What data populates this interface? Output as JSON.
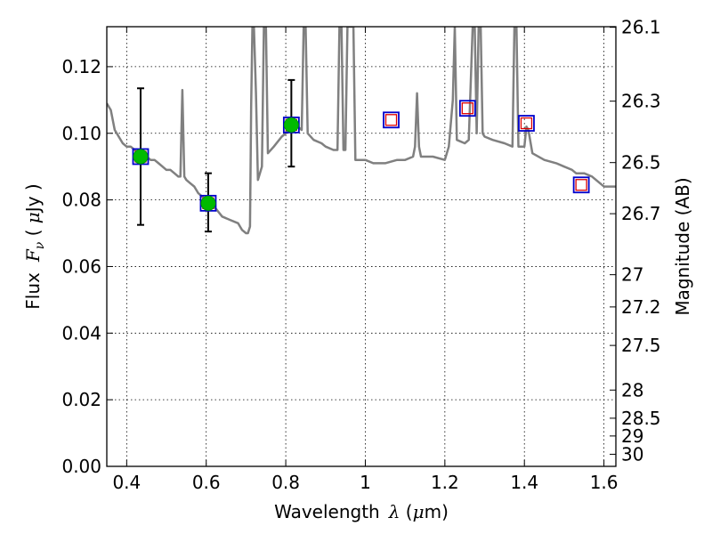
{
  "chart_data": {
    "type": "scatter",
    "title": "",
    "xlabel": "Wavelength",
    "xlabel_symbol": "λ",
    "xlabel_unit_open": " (",
    "xlabel_unit_mu": "μ",
    "xlabel_unit_rest": "m)",
    "ylabel": "Flux",
    "ylabel_symbol": "F",
    "ylabel_symbol_sub": "ν",
    "ylabel_unit_open": " ( ",
    "ylabel_unit_mu": "μ",
    "ylabel_unit_rest": "Jy )",
    "y2label": "Magnitude (AB)",
    "xlim": [
      0.35,
      1.63
    ],
    "ylim": [
      0.0,
      0.132
    ],
    "grid": true,
    "x_ticks": [
      {
        "value": 0.4,
        "label": "0.4"
      },
      {
        "value": 0.6,
        "label": "0.6"
      },
      {
        "value": 0.8,
        "label": "0.8"
      },
      {
        "value": 1.0,
        "label": "1"
      },
      {
        "value": 1.2,
        "label": "1.2"
      },
      {
        "value": 1.4,
        "label": "1.4"
      },
      {
        "value": 1.6,
        "label": "1.6"
      }
    ],
    "y_ticks": [
      {
        "value": 0.0,
        "label": "0.00"
      },
      {
        "value": 0.02,
        "label": "0.02"
      },
      {
        "value": 0.04,
        "label": "0.04"
      },
      {
        "value": 0.06,
        "label": "0.06"
      },
      {
        "value": 0.08,
        "label": "0.08"
      },
      {
        "value": 0.1,
        "label": "0.10"
      },
      {
        "value": 0.12,
        "label": "0.12"
      }
    ],
    "mag_ticks": [
      {
        "value": 26.1,
        "label": "26.1"
      },
      {
        "value": 26.3,
        "label": "26.3"
      },
      {
        "value": 26.5,
        "label": "26.5"
      },
      {
        "value": 26.7,
        "label": "26.7"
      },
      {
        "value": 27.0,
        "label": "27"
      },
      {
        "value": 27.2,
        "label": "27.2"
      },
      {
        "value": 27.5,
        "label": "27.5"
      },
      {
        "value": 28.0,
        "label": "28"
      },
      {
        "value": 28.5,
        "label": "28.5"
      },
      {
        "value": 29.0,
        "label": "29"
      },
      {
        "value": 30.0,
        "label": "30"
      }
    ],
    "mag_zero_point": 23.9,
    "model_spectrum": {
      "color": "#808080",
      "points": [
        [
          0.35,
          0.109
        ],
        [
          0.36,
          0.107
        ],
        [
          0.37,
          0.101
        ],
        [
          0.38,
          0.099
        ],
        [
          0.39,
          0.097
        ],
        [
          0.4,
          0.096
        ],
        [
          0.41,
          0.096
        ],
        [
          0.42,
          0.095
        ],
        [
          0.43,
          0.094
        ],
        [
          0.44,
          0.093
        ],
        [
          0.45,
          0.093
        ],
        [
          0.46,
          0.092
        ],
        [
          0.47,
          0.092
        ],
        [
          0.48,
          0.091
        ],
        [
          0.49,
          0.09
        ],
        [
          0.5,
          0.089
        ],
        [
          0.51,
          0.089
        ],
        [
          0.52,
          0.088
        ],
        [
          0.53,
          0.087
        ],
        [
          0.535,
          0.087
        ],
        [
          0.54,
          0.113
        ],
        [
          0.545,
          0.087
        ],
        [
          0.55,
          0.086
        ],
        [
          0.56,
          0.085
        ],
        [
          0.57,
          0.084
        ],
        [
          0.58,
          0.082
        ],
        [
          0.59,
          0.081
        ],
        [
          0.6,
          0.08
        ],
        [
          0.62,
          0.078
        ],
        [
          0.64,
          0.075
        ],
        [
          0.66,
          0.074
        ],
        [
          0.68,
          0.073
        ],
        [
          0.69,
          0.071
        ],
        [
          0.7,
          0.07
        ],
        [
          0.705,
          0.07
        ],
        [
          0.71,
          0.072
        ],
        [
          0.713,
          0.108
        ],
        [
          0.716,
          0.132
        ],
        [
          0.72,
          0.132
        ],
        [
          0.725,
          0.112
        ],
        [
          0.73,
          0.086
        ],
        [
          0.74,
          0.09
        ],
        [
          0.745,
          0.132
        ],
        [
          0.75,
          0.132
        ],
        [
          0.755,
          0.094
        ],
        [
          0.77,
          0.096
        ],
        [
          0.79,
          0.099
        ],
        [
          0.8,
          0.1
        ],
        [
          0.81,
          0.101
        ],
        [
          0.82,
          0.102
        ],
        [
          0.83,
          0.102
        ],
        [
          0.84,
          0.101
        ],
        [
          0.845,
          0.132
        ],
        [
          0.85,
          0.132
        ],
        [
          0.855,
          0.1
        ],
        [
          0.87,
          0.098
        ],
        [
          0.89,
          0.097
        ],
        [
          0.9,
          0.096
        ],
        [
          0.92,
          0.095
        ],
        [
          0.93,
          0.095
        ],
        [
          0.935,
          0.132
        ],
        [
          0.94,
          0.132
        ],
        [
          0.945,
          0.095
        ],
        [
          0.95,
          0.095
        ],
        [
          0.955,
          0.132
        ],
        [
          0.96,
          0.132
        ],
        [
          0.965,
          0.132
        ],
        [
          0.97,
          0.132
        ],
        [
          0.975,
          0.092
        ],
        [
          0.98,
          0.092
        ],
        [
          1.0,
          0.092
        ],
        [
          1.02,
          0.091
        ],
        [
          1.05,
          0.091
        ],
        [
          1.08,
          0.092
        ],
        [
          1.1,
          0.092
        ],
        [
          1.12,
          0.093
        ],
        [
          1.125,
          0.096
        ],
        [
          1.13,
          0.112
        ],
        [
          1.135,
          0.096
        ],
        [
          1.14,
          0.093
        ],
        [
          1.17,
          0.093
        ],
        [
          1.2,
          0.092
        ],
        [
          1.21,
          0.096
        ],
        [
          1.22,
          0.11
        ],
        [
          1.225,
          0.132
        ],
        [
          1.23,
          0.098
        ],
        [
          1.25,
          0.097
        ],
        [
          1.26,
          0.098
        ],
        [
          1.27,
          0.132
        ],
        [
          1.275,
          0.132
        ],
        [
          1.28,
          0.1
        ],
        [
          1.285,
          0.132
        ],
        [
          1.29,
          0.132
        ],
        [
          1.295,
          0.1
        ],
        [
          1.3,
          0.099
        ],
        [
          1.32,
          0.098
        ],
        [
          1.35,
          0.097
        ],
        [
          1.37,
          0.096
        ],
        [
          1.375,
          0.132
        ],
        [
          1.38,
          0.132
        ],
        [
          1.385,
          0.096
        ],
        [
          1.4,
          0.096
        ],
        [
          1.405,
          0.102
        ],
        [
          1.41,
          0.101
        ],
        [
          1.42,
          0.094
        ],
        [
          1.45,
          0.092
        ],
        [
          1.48,
          0.091
        ],
        [
          1.5,
          0.09
        ],
        [
          1.52,
          0.089
        ],
        [
          1.53,
          0.088
        ],
        [
          1.55,
          0.088
        ],
        [
          1.57,
          0.087
        ],
        [
          1.6,
          0.084
        ],
        [
          1.63,
          0.084
        ]
      ]
    },
    "observed_points": {
      "color": "#00bb00",
      "points": [
        {
          "x": 0.435,
          "y": 0.093,
          "err_lo": 0.0725,
          "err_hi": 0.1135
        },
        {
          "x": 0.605,
          "y": 0.079,
          "err_lo": 0.0705,
          "err_hi": 0.088
        },
        {
          "x": 0.814,
          "y": 0.1025,
          "err_lo": 0.09,
          "err_hi": 0.116
        }
      ]
    },
    "model_bands": {
      "outer_color": "#0000cc",
      "inner_color": "#dd0000",
      "points": [
        {
          "x": 0.435,
          "y": 0.093
        },
        {
          "x": 0.605,
          "y": 0.079
        },
        {
          "x": 0.814,
          "y": 0.1025
        },
        {
          "x": 1.065,
          "y": 0.104
        },
        {
          "x": 1.257,
          "y": 0.1075
        },
        {
          "x": 1.405,
          "y": 0.103
        },
        {
          "x": 1.543,
          "y": 0.0845
        }
      ]
    }
  }
}
